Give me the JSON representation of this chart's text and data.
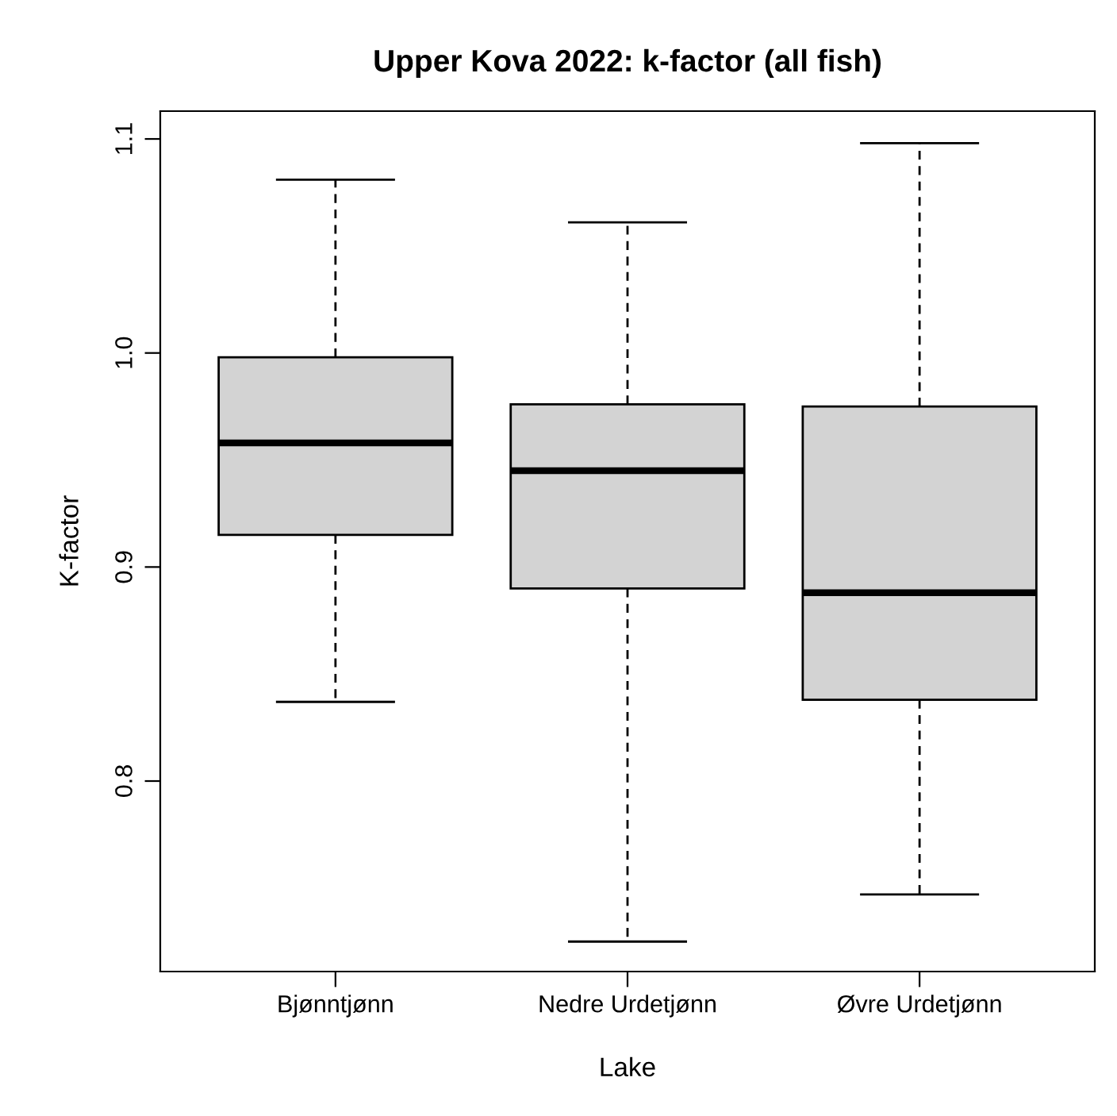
{
  "chart_data": {
    "type": "box",
    "title": "Upper Kova 2022: k-factor (all fish)",
    "xlabel": "Lake",
    "ylabel": "K-factor",
    "categories": [
      "Bjønntjønn",
      "Nedre Urdetjønn",
      "Øvre Urdetjønn"
    ],
    "boxes": [
      {
        "low": 0.837,
        "q1": 0.915,
        "median": 0.958,
        "q3": 0.998,
        "high": 1.081
      },
      {
        "low": 0.725,
        "q1": 0.89,
        "median": 0.945,
        "q3": 0.976,
        "high": 1.061
      },
      {
        "low": 0.747,
        "q1": 0.838,
        "median": 0.888,
        "q3": 0.975,
        "high": 1.098
      }
    ],
    "color": "#d3d3d3",
    "ylim": [
      0.711,
      1.113
    ],
    "yticks": [
      {
        "value": 0.8,
        "label": "0.8"
      },
      {
        "value": 0.9,
        "label": "0.9"
      },
      {
        "value": 1.0,
        "label": "1.0"
      },
      {
        "value": 1.1,
        "label": "1.1"
      }
    ],
    "grid": false
  }
}
